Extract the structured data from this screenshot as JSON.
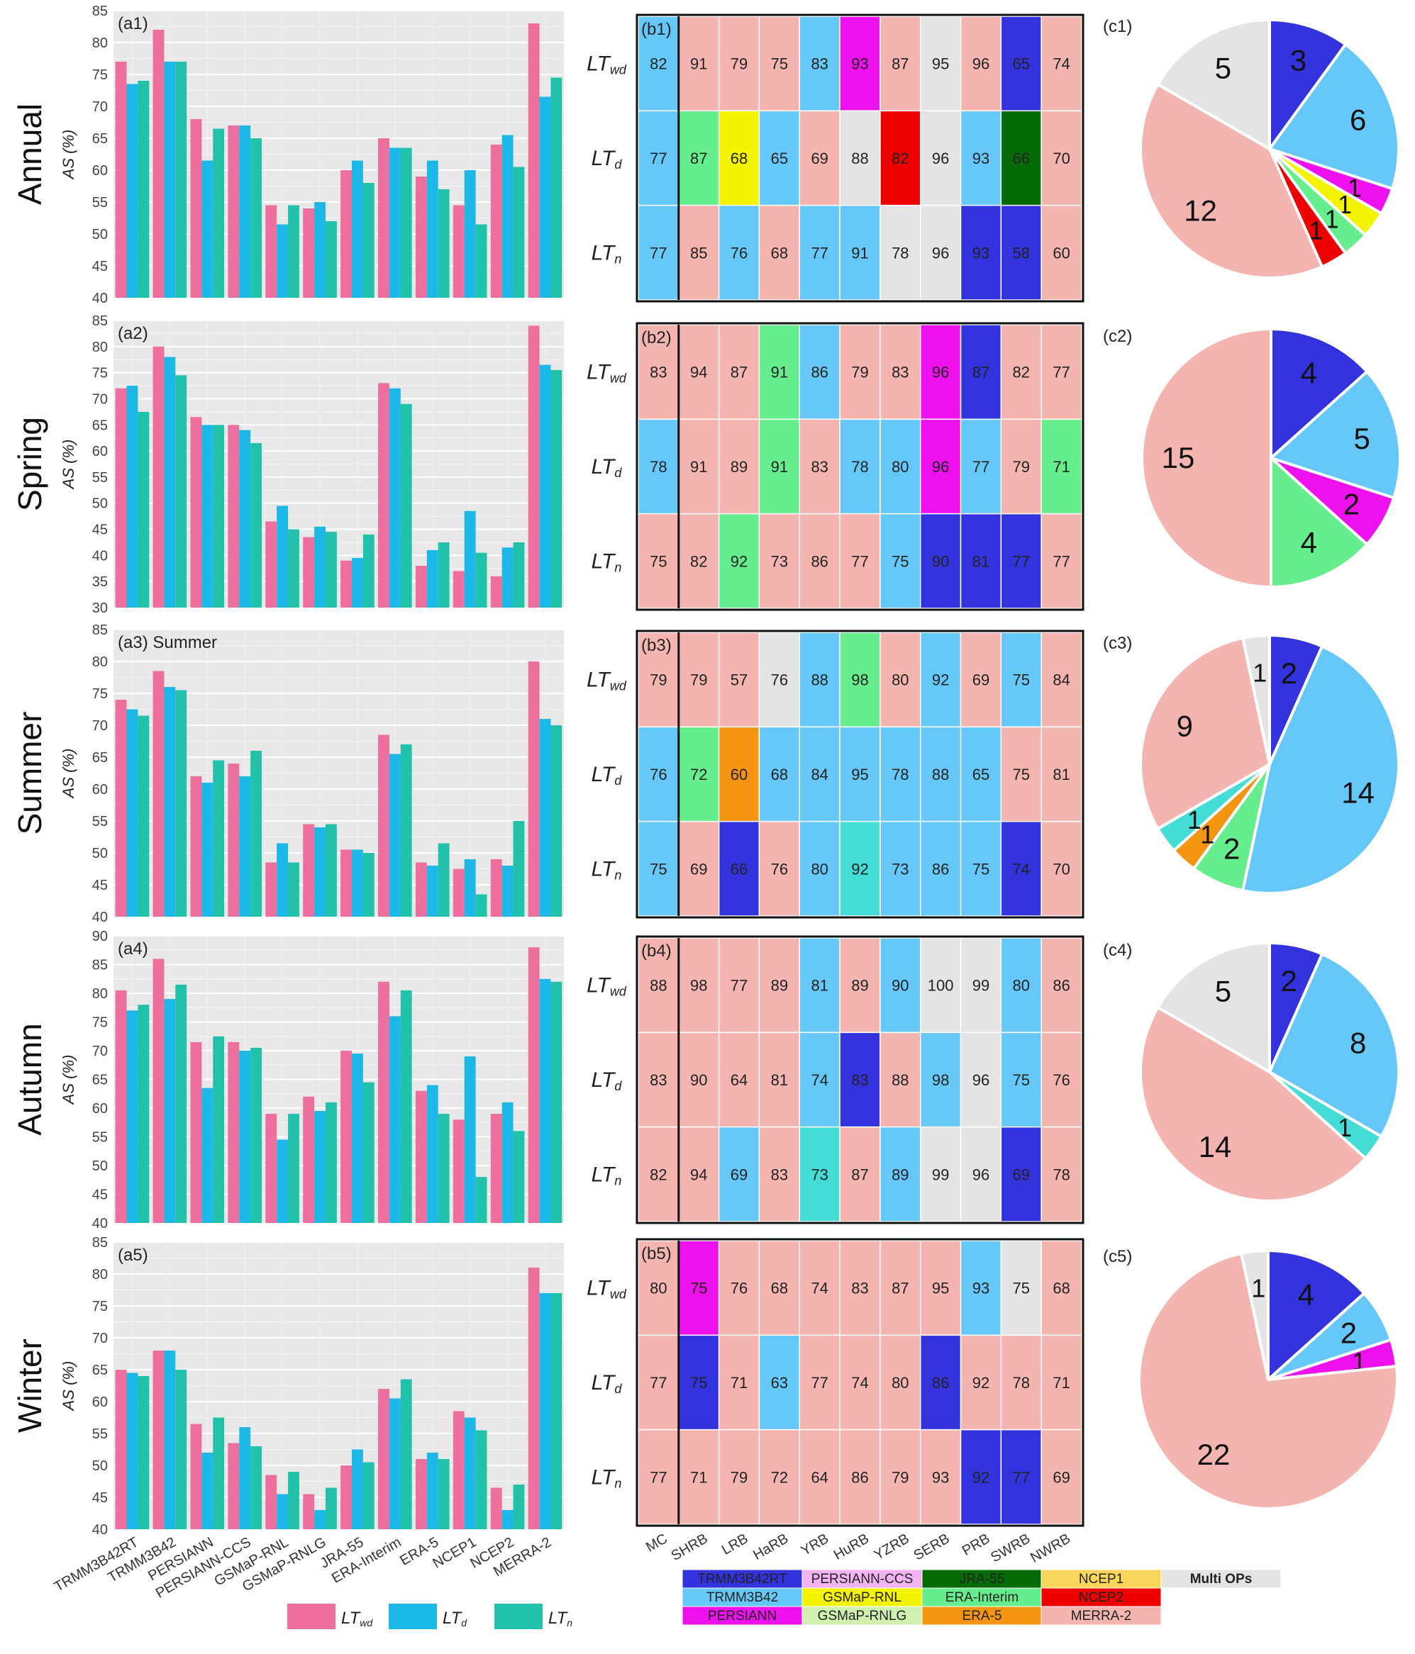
{
  "seasons": [
    "Annual",
    "Spring",
    "Summer",
    "Autumn",
    "Winter"
  ],
  "y_axis_label": "AS (%)",
  "products": [
    "TRMM3B42RT",
    "TRMM3B42",
    "PERSIANN",
    "PERSIANN-CCS",
    "GSMaP-RNL",
    "GSMaP-RNLG",
    "JRA-55",
    "ERA-Interim",
    "ERA-5",
    "NCEP1",
    "NCEP2",
    "MERRA-2"
  ],
  "regions": [
    "MC",
    "SHRB",
    "LRB",
    "HaRB",
    "YRB",
    "HuRB",
    "YZRB",
    "SERB",
    "PRB",
    "SWRB",
    "NWRB"
  ],
  "bar_legend": [
    {
      "label": "LTwd",
      "color": "#ee6f9e"
    },
    {
      "label": "LTd",
      "color": "#1cb8e8"
    },
    {
      "label": "LTn",
      "color": "#22c1a9"
    }
  ],
  "op_legend": [
    {
      "label": "TRMM3B42RT",
      "color": "#3333dd"
    },
    {
      "label": "PERSIANN-CCS",
      "color": "#f2b3f2"
    },
    {
      "label": "JRA-55",
      "color": "#066b06"
    },
    {
      "label": "NCEP1",
      "color": "#f9d65a"
    },
    {
      "label": "Multi OPs",
      "color": "#e4e4e4"
    },
    {
      "label": "TRMM3B42",
      "color": "#66c8f8"
    },
    {
      "label": "GSMaP-RNL",
      "color": "#f4f400"
    },
    {
      "label": "ERA-Interim",
      "color": "#66ee8e"
    },
    {
      "label": "NCEP2",
      "color": "#ee0000"
    },
    {
      "label": "PERSIANN",
      "color": "#ee11ee"
    },
    {
      "label": "GSMaP-RNLG",
      "color": "#d0f0b0"
    },
    {
      "label": "ERA-5",
      "color": "#f49512"
    },
    {
      "label": "MERRA-2",
      "color": "#f4b5b0"
    }
  ],
  "chart_data": [
    {
      "type": "bar",
      "panel": "a1",
      "title": "",
      "ylim": [
        40,
        85
      ],
      "ticks": [
        40,
        45,
        50,
        55,
        60,
        65,
        70,
        75,
        80,
        85
      ],
      "categories": [
        "TRMM3B42RT",
        "TRMM3B42",
        "PERSIANN",
        "PERSIANN-CCS",
        "GSMaP-RNL",
        "GSMaP-RNLG",
        "JRA-55",
        "ERA-Interim",
        "ERA-5",
        "NCEP1",
        "NCEP2",
        "MERRA-2"
      ],
      "series": [
        {
          "name": "LTwd",
          "values": [
            77,
            82,
            68,
            67,
            54.5,
            54,
            60,
            65,
            59,
            54.5,
            64,
            83
          ]
        },
        {
          "name": "LTd",
          "values": [
            73.5,
            77,
            61.5,
            67,
            51.5,
            55,
            61.5,
            63.5,
            61.5,
            60,
            65.5,
            71.5
          ]
        },
        {
          "name": "LTn",
          "values": [
            74,
            77,
            66.5,
            65,
            54.5,
            52,
            58,
            63.5,
            57,
            51.5,
            60.5,
            74.5
          ]
        }
      ]
    },
    {
      "type": "bar",
      "panel": "a2",
      "title": "",
      "ylim": [
        30,
        85
      ],
      "ticks": [
        30,
        35,
        40,
        45,
        50,
        55,
        60,
        65,
        70,
        75,
        80,
        85
      ],
      "categories": [
        "TRMM3B42RT",
        "TRMM3B42",
        "PERSIANN",
        "PERSIANN-CCS",
        "GSMaP-RNL",
        "GSMaP-RNLG",
        "JRA-55",
        "ERA-Interim",
        "ERA-5",
        "NCEP1",
        "NCEP2",
        "MERRA-2"
      ],
      "series": [
        {
          "name": "LTwd",
          "values": [
            72,
            80,
            66.5,
            65,
            46.5,
            43.5,
            39,
            73,
            38,
            37,
            36,
            84
          ]
        },
        {
          "name": "LTd",
          "values": [
            72.5,
            78,
            65,
            64,
            49.5,
            45.5,
            39.5,
            72,
            41,
            48.5,
            41.5,
            76.5
          ]
        },
        {
          "name": "LTn",
          "values": [
            67.5,
            74.5,
            65,
            61.5,
            45,
            44.5,
            44,
            69,
            42.5,
            40.5,
            42.5,
            75.5
          ]
        }
      ]
    },
    {
      "type": "bar",
      "panel": "a3",
      "title": "Summer",
      "ylim": [
        40,
        85
      ],
      "ticks": [
        40,
        45,
        50,
        55,
        60,
        65,
        70,
        75,
        80,
        85
      ],
      "categories": [
        "TRMM3B42RT",
        "TRMM3B42",
        "PERSIANN",
        "PERSIANN-CCS",
        "GSMaP-RNL",
        "GSMaP-RNLG",
        "JRA-55",
        "ERA-Interim",
        "ERA-5",
        "NCEP1",
        "NCEP2",
        "MERRA-2"
      ],
      "series": [
        {
          "name": "LTwd",
          "values": [
            74,
            78.5,
            62,
            64,
            48.5,
            54.5,
            50.5,
            68.5,
            48.5,
            47.5,
            49,
            80
          ]
        },
        {
          "name": "LTd",
          "values": [
            72.5,
            76,
            61,
            62,
            51.5,
            54,
            50.5,
            65.5,
            48,
            49,
            48,
            71
          ]
        },
        {
          "name": "LTn",
          "values": [
            71.5,
            75.5,
            64.5,
            66,
            48.5,
            54.5,
            50,
            67,
            51.5,
            43.5,
            55,
            70
          ]
        }
      ]
    },
    {
      "type": "bar",
      "panel": "a4",
      "title": "",
      "ylim": [
        40,
        90
      ],
      "ticks": [
        40,
        45,
        50,
        55,
        60,
        65,
        70,
        75,
        80,
        85,
        90
      ],
      "categories": [
        "TRMM3B42RT",
        "TRMM3B42",
        "PERSIANN",
        "PERSIANN-CCS",
        "GSMaP-RNL",
        "GSMaP-RNLG",
        "JRA-55",
        "ERA-Interim",
        "ERA-5",
        "NCEP1",
        "NCEP2",
        "MERRA-2"
      ],
      "series": [
        {
          "name": "LTwd",
          "values": [
            80.5,
            86,
            71.5,
            71.5,
            59,
            62,
            70,
            82,
            63,
            58,
            59,
            88
          ]
        },
        {
          "name": "LTd",
          "values": [
            77,
            79,
            63.5,
            70,
            54.5,
            59.5,
            69.5,
            76,
            64,
            69,
            61,
            82.5
          ]
        },
        {
          "name": "LTn",
          "values": [
            78,
            81.5,
            72.5,
            70.5,
            59,
            61,
            64.5,
            80.5,
            59,
            48,
            56,
            82
          ]
        }
      ]
    },
    {
      "type": "bar",
      "panel": "a5",
      "title": "",
      "ylim": [
        40,
        85
      ],
      "ticks": [
        40,
        45,
        50,
        55,
        60,
        65,
        70,
        75,
        80,
        85
      ],
      "categories": [
        "TRMM3B42RT",
        "TRMM3B42",
        "PERSIANN",
        "PERSIANN-CCS",
        "GSMaP-RNL",
        "GSMaP-RNLG",
        "JRA-55",
        "ERA-Interim",
        "ERA-5",
        "NCEP1",
        "NCEP2",
        "MERRA-2"
      ],
      "series": [
        {
          "name": "LTwd",
          "values": [
            65,
            68,
            56.5,
            53.5,
            48.5,
            45.5,
            50,
            62,
            51,
            58.5,
            46.5,
            81
          ]
        },
        {
          "name": "LTd",
          "values": [
            64.5,
            68,
            52,
            56,
            45.5,
            43,
            52.5,
            60.5,
            52,
            57.5,
            43,
            77
          ]
        },
        {
          "name": "LTn",
          "values": [
            64,
            65,
            57.5,
            53,
            49,
            46.5,
            50.5,
            63.5,
            51,
            55.5,
            47,
            77
          ]
        }
      ]
    },
    {
      "type": "heatmap",
      "panel": "b1",
      "rows": [
        "LTwd",
        "LTd",
        "LTn"
      ],
      "values": [
        [
          82,
          91,
          79,
          75,
          83,
          93,
          87,
          95,
          96,
          65,
          74
        ],
        [
          77,
          87,
          68,
          65,
          69,
          88,
          82,
          96,
          93,
          66,
          70
        ],
        [
          77,
          85,
          76,
          68,
          77,
          91,
          78,
          96,
          93,
          58,
          60
        ]
      ],
      "ops": [
        [
          "TRMM3B42",
          "MERRA-2",
          "MERRA-2",
          "MERRA-2",
          "TRMM3B42",
          "PERSIANN",
          "MERRA-2",
          "Multi OPs",
          "MERRA-2",
          "TRMM3B42RT",
          "MERRA-2"
        ],
        [
          "TRMM3B42",
          "ERA-Interim",
          "GSMaP-RNL",
          "TRMM3B42",
          "MERRA-2",
          "Multi OPs",
          "NCEP2",
          "Multi OPs",
          "TRMM3B42",
          "JRA-55",
          "MERRA-2"
        ],
        [
          "TRMM3B42",
          "MERRA-2",
          "TRMM3B42",
          "MERRA-2",
          "TRMM3B42",
          "TRMM3B42",
          "Multi OPs",
          "Multi OPs",
          "TRMM3B42RT",
          "TRMM3B42RT",
          "MERRA-2"
        ]
      ]
    },
    {
      "type": "heatmap",
      "panel": "b2",
      "rows": [
        "LTwd",
        "LTd",
        "LTn"
      ],
      "values": [
        [
          83,
          94,
          87,
          91,
          86,
          79,
          83,
          96,
          87,
          82,
          77
        ],
        [
          78,
          91,
          89,
          91,
          83,
          78,
          80,
          96,
          77,
          79,
          71
        ],
        [
          75,
          82,
          92,
          73,
          86,
          77,
          75,
          90,
          81,
          77,
          77
        ]
      ],
      "ops": [
        [
          "MERRA-2",
          "MERRA-2",
          "MERRA-2",
          "ERA-Interim",
          "TRMM3B42",
          "MERRA-2",
          "MERRA-2",
          "PERSIANN",
          "TRMM3B42RT",
          "MERRA-2",
          "MERRA-2"
        ],
        [
          "TRMM3B42",
          "MERRA-2",
          "MERRA-2",
          "ERA-Interim",
          "MERRA-2",
          "TRMM3B42",
          "TRMM3B42",
          "PERSIANN",
          "TRMM3B42",
          "MERRA-2",
          "ERA-Interim"
        ],
        [
          "MERRA-2",
          "MERRA-2",
          "ERA-Interim",
          "MERRA-2",
          "MERRA-2",
          "MERRA-2",
          "TRMM3B42",
          "TRMM3B42RT",
          "TRMM3B42RT",
          "TRMM3B42RT",
          "MERRA-2"
        ]
      ]
    },
    {
      "type": "heatmap",
      "panel": "b3",
      "rows": [
        "LTwd",
        "LTd",
        "LTn"
      ],
      "values": [
        [
          79,
          79,
          57,
          76,
          88,
          98,
          80,
          92,
          69,
          75,
          84
        ],
        [
          76,
          72,
          60,
          68,
          84,
          95,
          78,
          88,
          65,
          75,
          81
        ],
        [
          75,
          69,
          66,
          76,
          80,
          92,
          73,
          86,
          75,
          74,
          70
        ]
      ],
      "ops": [
        [
          "MERRA-2",
          "MERRA-2",
          "MERRA-2",
          "Multi OPs",
          "TRMM3B42",
          "ERA-Interim",
          "MERRA-2",
          "TRMM3B42",
          "MERRA-2",
          "TRMM3B42",
          "MERRA-2"
        ],
        [
          "TRMM3B42",
          "ERA-Interim",
          "ERA-5",
          "TRMM3B42",
          "TRMM3B42",
          "TRMM3B42",
          "TRMM3B42",
          "TRMM3B42",
          "TRMM3B42",
          "MERRA-2",
          "MERRA-2"
        ],
        [
          "TRMM3B42",
          "MERRA-2",
          "TRMM3B42RT",
          "MERRA-2",
          "TRMM3B42",
          "Teal",
          "TRMM3B42",
          "TRMM3B42",
          "TRMM3B42",
          "TRMM3B42RT",
          "MERRA-2"
        ]
      ]
    },
    {
      "type": "heatmap",
      "panel": "b4",
      "rows": [
        "LTwd",
        "LTd",
        "LTn"
      ],
      "values": [
        [
          88,
          98,
          77,
          89,
          81,
          89,
          90,
          100,
          99,
          80,
          86
        ],
        [
          83,
          90,
          64,
          81,
          74,
          83,
          88,
          98,
          96,
          75,
          76
        ],
        [
          82,
          94,
          69,
          83,
          73,
          87,
          89,
          99,
          96,
          69,
          78
        ]
      ],
      "ops": [
        [
          "MERRA-2",
          "MERRA-2",
          "MERRA-2",
          "MERRA-2",
          "TRMM3B42",
          "MERRA-2",
          "TRMM3B42",
          "Multi OPs",
          "Multi OPs",
          "TRMM3B42",
          "MERRA-2"
        ],
        [
          "MERRA-2",
          "MERRA-2",
          "MERRA-2",
          "MERRA-2",
          "TRMM3B42",
          "TRMM3B42RT",
          "MERRA-2",
          "TRMM3B42",
          "Multi OPs",
          "TRMM3B42",
          "MERRA-2"
        ],
        [
          "MERRA-2",
          "MERRA-2",
          "TRMM3B42",
          "MERRA-2",
          "Teal",
          "MERRA-2",
          "TRMM3B42",
          "Multi OPs",
          "Multi OPs",
          "TRMM3B42RT",
          "MERRA-2"
        ]
      ]
    },
    {
      "type": "heatmap",
      "panel": "b5",
      "rows": [
        "LTwd",
        "LTd",
        "LTn"
      ],
      "values": [
        [
          80,
          75,
          76,
          68,
          74,
          83,
          87,
          95,
          93,
          75,
          68
        ],
        [
          77,
          75,
          71,
          63,
          77,
          74,
          80,
          86,
          92,
          78,
          71
        ],
        [
          77,
          71,
          79,
          72,
          64,
          86,
          79,
          93,
          92,
          77,
          69
        ]
      ],
      "ops": [
        [
          "MERRA-2",
          "PERSIANN",
          "MERRA-2",
          "MERRA-2",
          "MERRA-2",
          "MERRA-2",
          "MERRA-2",
          "MERRA-2",
          "TRMM3B42",
          "Multi OPs",
          "MERRA-2"
        ],
        [
          "MERRA-2",
          "TRMM3B42RT",
          "MERRA-2",
          "TRMM3B42",
          "MERRA-2",
          "MERRA-2",
          "MERRA-2",
          "TRMM3B42RT",
          "MERRA-2",
          "MERRA-2",
          "MERRA-2"
        ],
        [
          "MERRA-2",
          "MERRA-2",
          "MERRA-2",
          "MERRA-2",
          "MERRA-2",
          "MERRA-2",
          "MERRA-2",
          "MERRA-2",
          "TRMM3B42RT",
          "TRMM3B42RT",
          "MERRA-2"
        ]
      ]
    },
    {
      "type": "pie",
      "panel": "c1",
      "slices": [
        {
          "op": "TRMM3B42RT",
          "value": 3
        },
        {
          "op": "TRMM3B42",
          "value": 6
        },
        {
          "op": "PERSIANN",
          "value": 1
        },
        {
          "op": "GSMaP-RNL",
          "value": 1
        },
        {
          "op": "ERA-Interim",
          "value": 1
        },
        {
          "op": "NCEP2",
          "value": 1
        },
        {
          "op": "MERRA-2",
          "value": 12
        },
        {
          "op": "Multi OPs",
          "value": 5
        }
      ]
    },
    {
      "type": "pie",
      "panel": "c2",
      "slices": [
        {
          "op": "TRMM3B42RT",
          "value": 4
        },
        {
          "op": "TRMM3B42",
          "value": 5
        },
        {
          "op": "PERSIANN",
          "value": 2
        },
        {
          "op": "ERA-Interim",
          "value": 4
        },
        {
          "op": "MERRA-2",
          "value": 15
        }
      ]
    },
    {
      "type": "pie",
      "panel": "c3",
      "slices": [
        {
          "op": "TRMM3B42RT",
          "value": 2
        },
        {
          "op": "TRMM3B42",
          "value": 14
        },
        {
          "op": "ERA-Interim",
          "value": 2
        },
        {
          "op": "ERA-5",
          "value": 1
        },
        {
          "op": "Teal",
          "value": 1
        },
        {
          "op": "MERRA-2",
          "value": 9
        },
        {
          "op": "Multi OPs",
          "value": 1
        }
      ]
    },
    {
      "type": "pie",
      "panel": "c4",
      "slices": [
        {
          "op": "TRMM3B42RT",
          "value": 2
        },
        {
          "op": "TRMM3B42",
          "value": 8
        },
        {
          "op": "Teal",
          "value": 1
        },
        {
          "op": "MERRA-2",
          "value": 14
        },
        {
          "op": "Multi OPs",
          "value": 5
        }
      ]
    },
    {
      "type": "pie",
      "panel": "c5",
      "slices": [
        {
          "op": "TRMM3B42RT",
          "value": 4
        },
        {
          "op": "TRMM3B42",
          "value": 2
        },
        {
          "op": "PERSIANN",
          "value": 1
        },
        {
          "op": "MERRA-2",
          "value": 22
        },
        {
          "op": "Multi OPs",
          "value": 1
        }
      ]
    }
  ]
}
